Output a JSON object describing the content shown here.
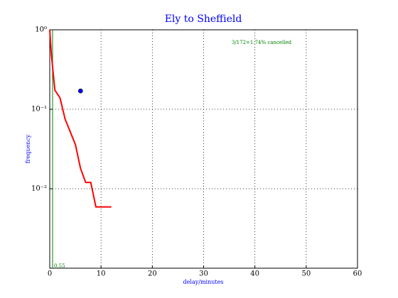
{
  "chart_data": {
    "type": "line",
    "title": "Ely to Sheffield",
    "xlabel": "delay/minutes",
    "ylabel": "frequency",
    "annotations": [
      "3/172=1.74% cancelled"
    ],
    "xlim": [
      0,
      60
    ],
    "xticks": [
      0,
      10,
      20,
      30,
      40,
      50,
      60
    ],
    "ylim": [
      0.001,
      1
    ],
    "yscale": "log",
    "yticks": [
      {
        "value": 1,
        "label": "10⁰"
      },
      {
        "value": 0.1,
        "label": "10⁻¹"
      },
      {
        "value": 0.01,
        "label": "10⁻²"
      }
    ],
    "grid": true,
    "series": [
      {
        "type": "line",
        "color": "#ff0000",
        "x": [
          0,
          0.3,
          1,
          2,
          3,
          5,
          6,
          7,
          8,
          9,
          12
        ],
        "values": [
          1,
          0.5,
          0.174,
          0.139,
          0.075,
          0.036,
          0.018,
          0.012,
          0.012,
          0.0059,
          0.0059
        ]
      },
      {
        "type": "scatter",
        "color": "#0000ff",
        "x": [
          6
        ],
        "values": [
          0.17
        ]
      }
    ],
    "vlines": [
      {
        "x": 0.55,
        "label": 0.55,
        "color": "#008000"
      }
    ]
  }
}
